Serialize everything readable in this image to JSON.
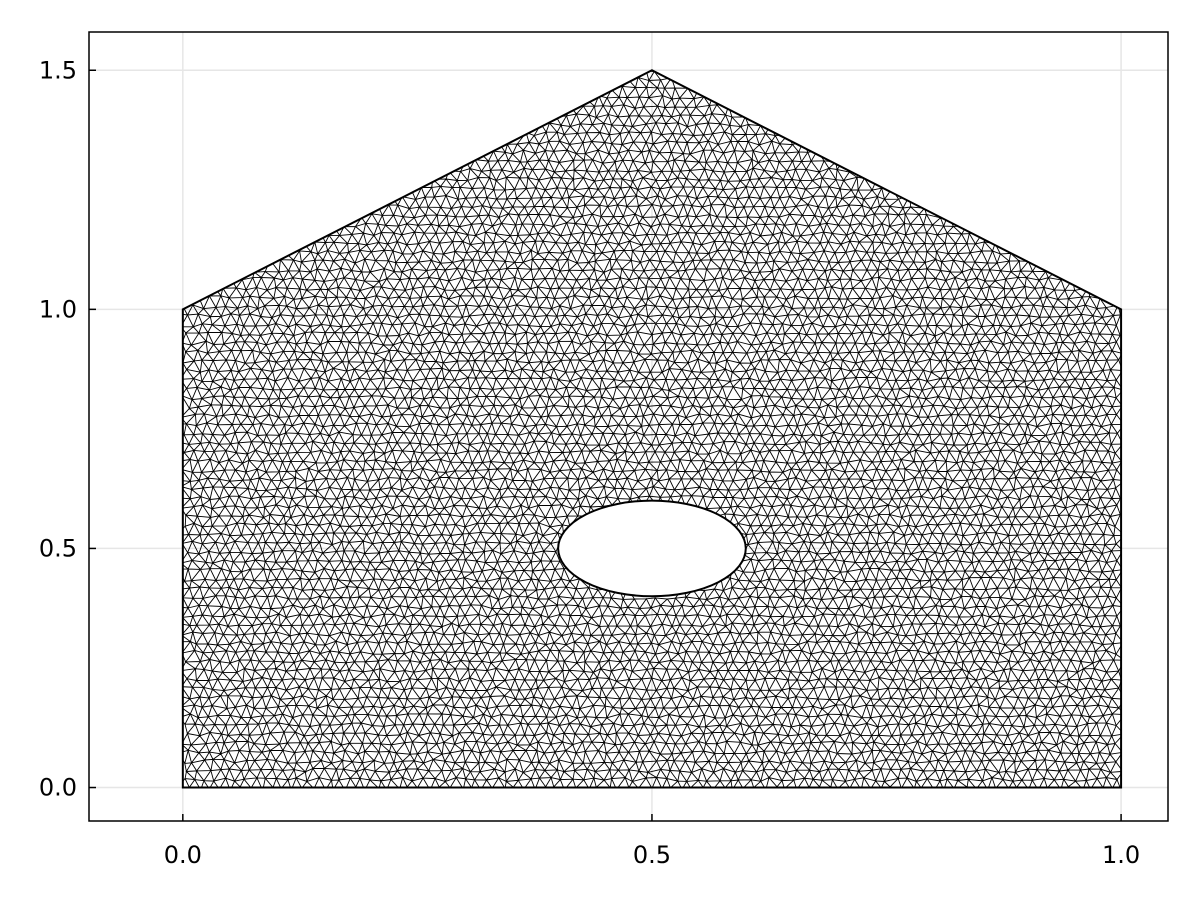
{
  "chart_data": {
    "type": "mesh",
    "title": "",
    "xlabel": "",
    "ylabel": "",
    "xlim": [
      -0.1,
      1.05
    ],
    "ylim": [
      -0.07,
      1.58
    ],
    "xticks": [
      0.0,
      0.5,
      1.0
    ],
    "xtick_labels": [
      "0.0",
      "0.5",
      "1.0"
    ],
    "yticks": [
      0.0,
      0.5,
      1.0,
      1.5
    ],
    "ytick_labels": [
      "0.0",
      "0.5",
      "1.0",
      "1.5"
    ],
    "grid": true,
    "domain_outline": [
      [
        0,
        0
      ],
      [
        1,
        0
      ],
      [
        1,
        1
      ],
      [
        0.5,
        1.5
      ],
      [
        0,
        1
      ]
    ],
    "hole": {
      "shape": "ellipse",
      "center": [
        0.5,
        0.5
      ],
      "semi_axis_x": 0.1,
      "semi_axis_y": 0.1
    },
    "element_type": "triangle",
    "colors": {
      "mesh": "#000000",
      "grid": "#e6e6e6",
      "background": "#ffffff"
    }
  }
}
